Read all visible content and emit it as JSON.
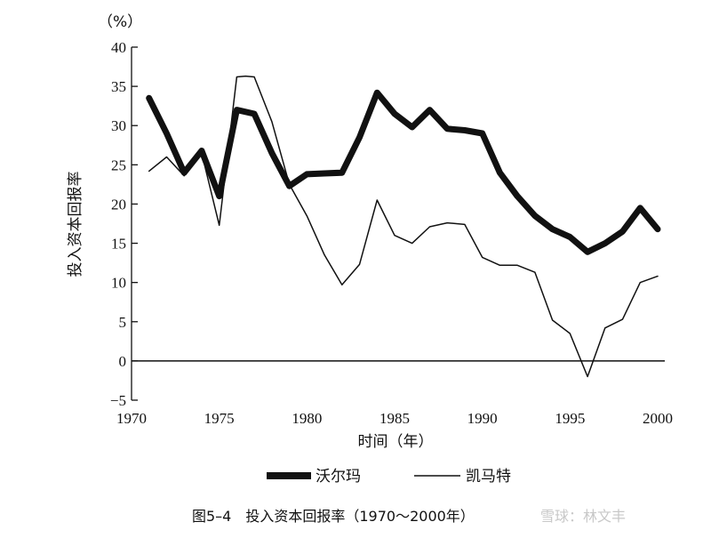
{
  "chart_data": {
    "type": "line",
    "unit_label": "（%）",
    "ylabel": "投入资本回报率",
    "xlabel": "时间（年）",
    "xlim": [
      1970,
      2000
    ],
    "ylim": [
      -5,
      40
    ],
    "x_ticks": [
      1970,
      1975,
      1980,
      1985,
      1990,
      1995,
      2000
    ],
    "y_ticks": [
      -5,
      0,
      5,
      10,
      15,
      20,
      25,
      30,
      35,
      40
    ],
    "y_tick_labels": [
      "−5",
      "0",
      "5",
      "10",
      "15",
      "20",
      "25",
      "30",
      "35",
      "40"
    ],
    "grid": false,
    "legend_position": "bottom",
    "series": [
      {
        "name": "沃尔玛",
        "style": "thick",
        "x": [
          1971,
          1972,
          1973,
          1974,
          1975,
          1976,
          1977,
          1978,
          1979,
          1980,
          1981,
          1982,
          1983,
          1984,
          1985,
          1986,
          1987,
          1988,
          1989,
          1990,
          1991,
          1992,
          1993,
          1994,
          1995,
          1996,
          1997,
          1998,
          1999,
          2000
        ],
        "values": [
          33.5,
          29,
          24,
          26.8,
          21,
          32,
          31.5,
          26.5,
          22.3,
          23.8,
          23.9,
          24,
          28.5,
          34.2,
          31.5,
          29.8,
          32,
          29.6,
          29.4,
          29,
          24,
          21,
          18.5,
          16.8,
          15.8,
          13.9,
          15,
          16.5,
          19.5,
          16.8
        ]
      },
      {
        "name": "凯马特",
        "style": "thin",
        "x": [
          1971,
          1972,
          1973,
          1974,
          1975,
          1976,
          1976.5,
          1977,
          1978,
          1979,
          1980,
          1981,
          1982,
          1983,
          1984,
          1985,
          1986,
          1987,
          1988,
          1989,
          1990,
          1991,
          1992,
          1993,
          1994,
          1995,
          1996,
          1997,
          1998,
          1999,
          2000
        ],
        "values": [
          24.2,
          26,
          23.6,
          26.5,
          17.3,
          36.2,
          36.3,
          36.2,
          30.5,
          22.5,
          18.5,
          13.5,
          9.7,
          12.3,
          20.5,
          16,
          15,
          17.1,
          17.6,
          17.4,
          13.2,
          12.2,
          12.2,
          11.3,
          5.2,
          3.5,
          -2,
          4.2,
          5.3,
          10,
          10.8
        ]
      }
    ],
    "caption": "图5–4　投入资本回报率（1970～2000年）",
    "watermark": "雪球：林文丰"
  }
}
